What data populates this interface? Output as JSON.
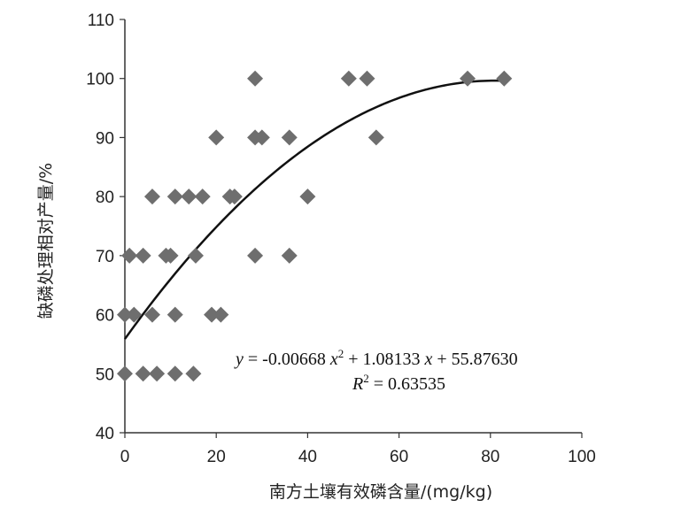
{
  "chart_data": {
    "type": "scatter",
    "xlabel": "南方土壤有效磷含量/(mg/kg)",
    "ylabel": "缺磷处理相对产量/%",
    "xlim": [
      0,
      100
    ],
    "ylim": [
      40,
      110
    ],
    "x_ticks": [
      "0",
      "20",
      "40",
      "60",
      "80",
      "100"
    ],
    "y_ticks": [
      "40",
      "50",
      "60",
      "70",
      "80",
      "90",
      "100",
      "110"
    ],
    "grid": false,
    "marker": "diamond",
    "marker_color": "#6e6e6e",
    "points": [
      {
        "x": 0,
        "y": 50
      },
      {
        "x": 4,
        "y": 50
      },
      {
        "x": 7,
        "y": 50
      },
      {
        "x": 11,
        "y": 50
      },
      {
        "x": 15,
        "y": 50
      },
      {
        "x": 0,
        "y": 60
      },
      {
        "x": 2,
        "y": 60
      },
      {
        "x": 6,
        "y": 60
      },
      {
        "x": 11,
        "y": 60
      },
      {
        "x": 19,
        "y": 60
      },
      {
        "x": 21,
        "y": 60
      },
      {
        "x": 1,
        "y": 70
      },
      {
        "x": 4,
        "y": 70
      },
      {
        "x": 9,
        "y": 70
      },
      {
        "x": 10,
        "y": 70
      },
      {
        "x": 15.5,
        "y": 70
      },
      {
        "x": 28.5,
        "y": 70
      },
      {
        "x": 36,
        "y": 70
      },
      {
        "x": 6,
        "y": 80
      },
      {
        "x": 11,
        "y": 80
      },
      {
        "x": 14,
        "y": 80
      },
      {
        "x": 17,
        "y": 80
      },
      {
        "x": 23,
        "y": 80
      },
      {
        "x": 24,
        "y": 80
      },
      {
        "x": 40,
        "y": 80
      },
      {
        "x": 20,
        "y": 90
      },
      {
        "x": 28.5,
        "y": 90
      },
      {
        "x": 30,
        "y": 90
      },
      {
        "x": 36,
        "y": 90
      },
      {
        "x": 55,
        "y": 90
      },
      {
        "x": 28.5,
        "y": 100
      },
      {
        "x": 49,
        "y": 100
      },
      {
        "x": 53,
        "y": 100
      },
      {
        "x": 75,
        "y": 100
      },
      {
        "x": 83,
        "y": 100
      }
    ],
    "fit": {
      "type": "quadratic",
      "a": -0.00668,
      "b": 1.08133,
      "c": 55.8763,
      "x_range": [
        0,
        83
      ]
    },
    "annotation": {
      "equation": {
        "y": "y",
        "eq1": " = -0.00668 ",
        "x1": "x",
        "sup": "2",
        "mid": " + 1.08133 ",
        "x2": "x",
        "tail": " + 55.87630"
      },
      "r2": {
        "R": "R",
        "sup": "2",
        "val": " = 0.63535"
      }
    }
  }
}
